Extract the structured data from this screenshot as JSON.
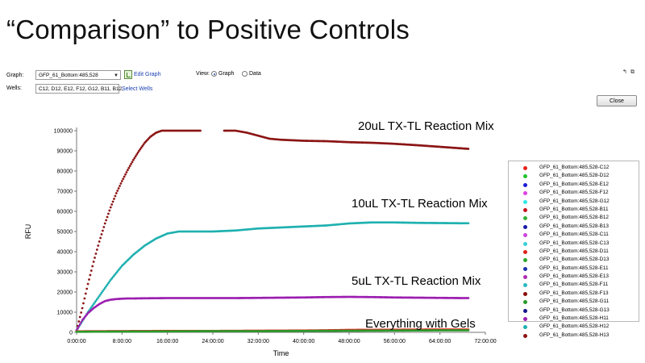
{
  "slide": {
    "title": "“Comparison” to Positive Controls"
  },
  "controls": {
    "graph_label": "Graph:",
    "graph_value": "GFP_61_Bottom:485,528",
    "edit_graph": "Edit Graph",
    "view_label": "View:",
    "view_graph": "Graph",
    "view_data": "Data",
    "view_selected": "Graph",
    "wells_label": "Wells:",
    "wells_value": "C12, D12, E12, F12, G12, B11, B12,",
    "select_wells": "Select Wells",
    "close": "Close",
    "icons": [
      "pin-icon",
      "restore-window-icon"
    ]
  },
  "annotations": {
    "a20": "20uL TX-TL Reaction Mix",
    "a10": "10uL TX-TL Reaction Mix",
    "a5": "5uL TX-TL Reaction Mix",
    "agels": "Everything with Gels"
  },
  "legend": [
    {
      "name": "GFP_61_Bottom:485,528-C12",
      "color": "#e8211b"
    },
    {
      "name": "GFP_61_Bottom:485,528-D12",
      "color": "#22c12a"
    },
    {
      "name": "GFP_61_Bottom:485,528-E12",
      "color": "#1c1cd6"
    },
    {
      "name": "GFP_61_Bottom:485,528-F12",
      "color": "#e040e0"
    },
    {
      "name": "GFP_61_Bottom:485,528-G12",
      "color": "#2fe8e8"
    },
    {
      "name": "GFP_61_Bottom:485,528-B11",
      "color": "#c8141e"
    },
    {
      "name": "GFP_61_Bottom:485,528-B12",
      "color": "#35b035"
    },
    {
      "name": "GFP_61_Bottom:485,528-B13",
      "color": "#1a1aa8"
    },
    {
      "name": "GFP_61_Bottom:485,528-C11",
      "color": "#cc44dd"
    },
    {
      "name": "GFP_61_Bottom:485,528-C13",
      "color": "#38d0d8"
    },
    {
      "name": "GFP_61_Bottom:485,528-D11",
      "color": "#e0221c"
    },
    {
      "name": "GFP_61_Bottom:485,528-D13",
      "color": "#2aa82a"
    },
    {
      "name": "GFP_61_Bottom:485,528-E11",
      "color": "#1b2ea8"
    },
    {
      "name": "GFP_61_Bottom:485,528-E13",
      "color": "#b02cb0"
    },
    {
      "name": "GFP_61_Bottom:485,528-F11",
      "color": "#2ab8c0"
    },
    {
      "name": "GFP_61_Bottom:485,528-F13",
      "color": "#8b0c0c"
    },
    {
      "name": "GFP_61_Bottom:485,528-G11",
      "color": "#2a9a2a"
    },
    {
      "name": "GFP_61_Bottom:485,528-G13",
      "color": "#16168a"
    },
    {
      "name": "GFP_61_Bottom:485,528-H11",
      "color": "#9c1fb0"
    },
    {
      "name": "GFP_61_Bottom:485,528-H12",
      "color": "#1fb0b0"
    },
    {
      "name": "GFP_61_Bottom:485,528-H13",
      "color": "#8b1414"
    }
  ],
  "chart_data": {
    "type": "scatter",
    "title": "",
    "xlabel": "Time",
    "ylabel": "RFU",
    "xlim": [
      0,
      72
    ],
    "ylim": [
      0,
      100000
    ],
    "x_unit": "hours",
    "x_ticks": [
      "0:00:00",
      "8:00:00",
      "16:00:00",
      "24:00:00",
      "32:00:00",
      "40:00:00",
      "48:00:00",
      "56:00:00",
      "64:00:00",
      "72:00:00"
    ],
    "y_ticks": [
      "0",
      "10000",
      "20000",
      "30000",
      "40000",
      "50000",
      "60000",
      "70000",
      "80000",
      "90000",
      "100000"
    ],
    "grid": false,
    "legend": "right",
    "series": [
      {
        "color": "#8b1414",
        "x": [
          0,
          1,
          2,
          3,
          4,
          5,
          6,
          7,
          8,
          9,
          10,
          11,
          12,
          13,
          14,
          15,
          16,
          17,
          22,
          24,
          26,
          28,
          30,
          32,
          34,
          36,
          40,
          44,
          48,
          52,
          56,
          60,
          64,
          68,
          69
        ],
        "y": [
          1000,
          12000,
          24000,
          35000,
          45000,
          54000,
          62000,
          69000,
          75000,
          80500,
          85500,
          90000,
          94000,
          97000,
          99000,
          100000,
          100000,
          100000,
          100000,
          null,
          100000,
          100000,
          99000,
          97500,
          96000,
          95500,
          95000,
          94800,
          94300,
          94000,
          93500,
          92800,
          92000,
          91200,
          91000
        ]
      },
      {
        "color": "#1fb0b0",
        "x": [
          0,
          2,
          4,
          6,
          8,
          10,
          12,
          14,
          16,
          18,
          20,
          24,
          28,
          32,
          36,
          40,
          44,
          48,
          52,
          56,
          60,
          64,
          68,
          69
        ],
        "y": [
          1000,
          10000,
          18000,
          26000,
          33000,
          38500,
          43000,
          46500,
          49000,
          50000,
          50000,
          50000,
          50500,
          51500,
          52000,
          52500,
          53000,
          54000,
          54500,
          54500,
          54300,
          54200,
          54100,
          54100
        ]
      },
      {
        "color": "#9c1fb0",
        "x": [
          0,
          1,
          2,
          3,
          4,
          5,
          6,
          7,
          8,
          9,
          10,
          12,
          16,
          20,
          24,
          28,
          32,
          36,
          40,
          44,
          48,
          52,
          56,
          60,
          64,
          68,
          69
        ],
        "y": [
          1000,
          6000,
          9500,
          12000,
          14000,
          15500,
          16200,
          16500,
          16700,
          16800,
          16800,
          16900,
          17000,
          17000,
          17000,
          17000,
          17100,
          17200,
          17300,
          17500,
          17600,
          17500,
          17300,
          17200,
          17100,
          17000,
          17000
        ]
      },
      {
        "color": "#e8211b",
        "x": [
          0,
          8,
          16,
          24,
          32,
          40,
          44,
          48,
          56,
          64,
          69
        ],
        "y": [
          500,
          600,
          700,
          700,
          800,
          900,
          1000,
          1200,
          1300,
          1400,
          1400
        ]
      },
      {
        "color": "#2a9a2a",
        "x": [
          0,
          8,
          16,
          24,
          32,
          40,
          48,
          56,
          64,
          69
        ],
        "y": [
          300,
          400,
          500,
          600,
          600,
          700,
          800,
          900,
          1000,
          1000
        ]
      }
    ]
  }
}
